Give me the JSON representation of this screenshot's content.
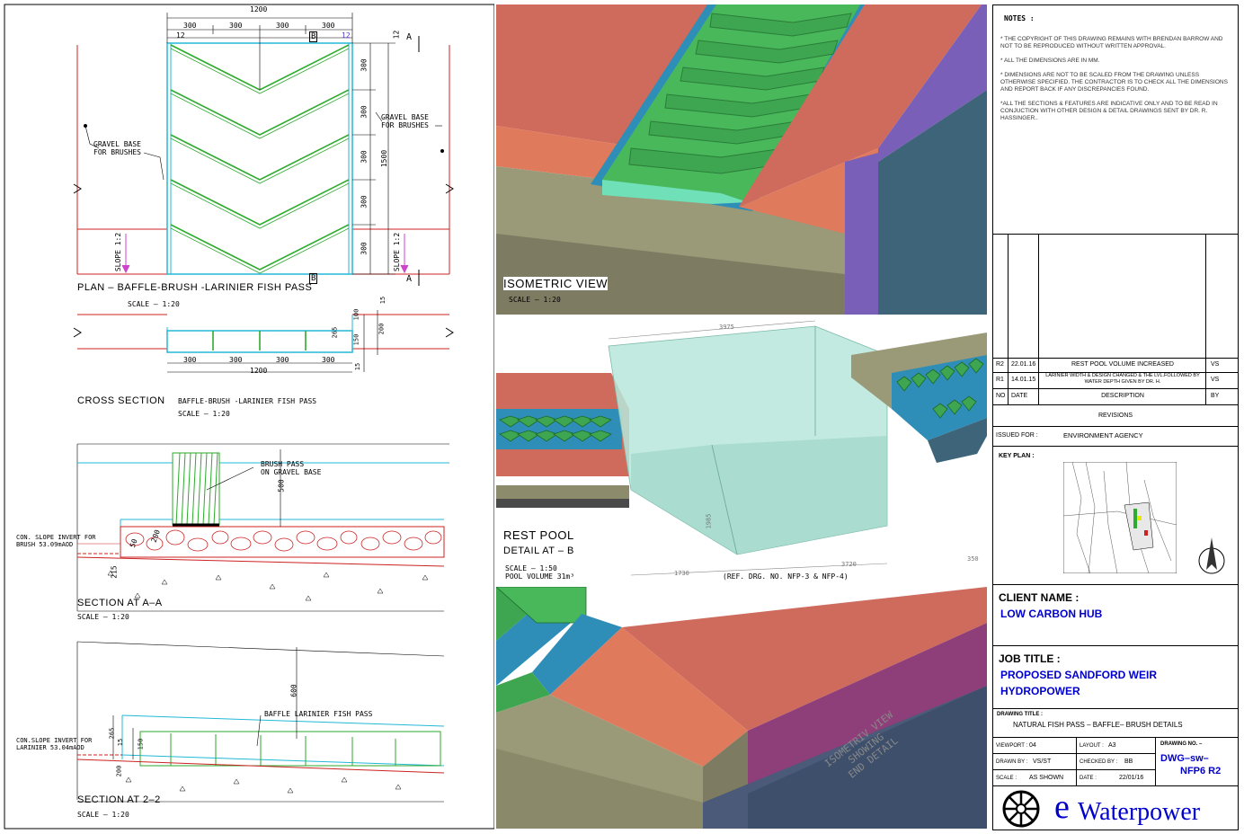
{
  "plan": {
    "title": "PLAN – BAFFLE-BRUSH -LARINIER FISH PASS",
    "scale": "SCALE – 1:20",
    "dims_top": [
      "300",
      "300",
      "300",
      "300"
    ],
    "dim_total": "1200",
    "dim_12_left": "12",
    "dim_12_right": "12",
    "dims_right": [
      "300",
      "300",
      "300",
      "300",
      "300"
    ],
    "dim_right_total": "1500",
    "dim_12_side": "12",
    "gravel_left": "GRAVEL BASE\nFOR BRUSHES",
    "gravel_right": "GRAVEL BASE\nFOR BRUSHES",
    "slope_left": "SLOPE 1:2",
    "slope_right": "SLOPE 1:2",
    "marker_a": "A",
    "marker_b": "B"
  },
  "cross_section": {
    "title": "CROSS SECTION",
    "subtitle": "BAFFLE-BRUSH -LARINIER FISH PASS",
    "scale": "SCALE – 1:20",
    "dims_bottom": [
      "300",
      "300",
      "300",
      "300"
    ],
    "dim_total": "1200",
    "dim_100": "100",
    "dim_265": "265",
    "dim_150": "150",
    "dim_200": "200",
    "dim_15a": "15",
    "dim_15b": "15"
  },
  "section_aa": {
    "title": "SECTION AT A–A",
    "scale": "SCALE – 1:20",
    "brush_label": "BRUSH PASS\nON GRAVEL BASE",
    "invert_label": "CON. SLOPE INVERT FOR\nBRUSH 53.09mAOD",
    "dim_500": "500",
    "dim_200": "200",
    "dim_50": "50",
    "dim_215": "215"
  },
  "section_22": {
    "title": "SECTION AT 2–2",
    "scale": "SCALE – 1:20",
    "baffle_label": "BAFFLE LARINIER FISH PASS",
    "invert_label": "CON.SLOPE INVERT FOR\nLARINIER 53.04mAOD",
    "dim_600": "600",
    "dim_265": "265",
    "dim_150": "150",
    "dim_15": "15",
    "dim_200": "200"
  },
  "iso_view": {
    "title": "ISOMETRIC  VIEW",
    "scale": "SCALE – 1:20"
  },
  "rest_pool": {
    "title": "REST POOL",
    "subtitle": "DETAIL AT – B",
    "scale": "SCALE – 1:50",
    "volume": "POOL VOLUME 31m³",
    "dim_3975": "3975",
    "dim_3720": "3720",
    "dim_1730": "1730",
    "dim_350": "350",
    "dim_1985": "1985",
    "ref": "(REF. DRG. NO. NFP-3 & NFP-4)"
  },
  "end_detail": {
    "label": "ISOMETRIV VIEW\nSHOWING\nEND DETAIL"
  },
  "notes": {
    "title": "NOTES :",
    "items": [
      "* THE COPYRIGHT OF THIS DRAWING REMAINS WITH BRENDAN BARROW AND NOT TO BE REPRODUCED WITHOUT WRITTEN APPROVAL.",
      "* ALL THE DIMENSIONS ARE IN MM.",
      "* DIMENSIONS ARE NOT TO BE SCALED FROM THE DRAWING UNLESS OTHERWISE SPECIFIED. THE CONTRACTOR IS TO CHECK ALL THE DIMENSIONS AND REPORT BACK IF ANY DISCREPANCIES FOUND.",
      "*ALL THE SECTIONS & FEATURES ARE INDICATIVE ONLY AND TO BE READ IN CONJUCTION WITH OTHER DESIGN & DETAIL DRAWINGS SENT BY DR. R. HASSINGER.."
    ]
  },
  "revisions": {
    "rows": [
      {
        "no": "R2",
        "date": "22.01.16",
        "desc": "REST POOL VOLUME INCREASED",
        "by": "VS"
      },
      {
        "no": "R1",
        "date": "14.01.15",
        "desc": "LARINIER WIDTH & DESIGN CHANGED & THE LVL.FOLLOWED BY WATER DEPTH GIVEN BY DR. H.",
        "by": "VS"
      }
    ],
    "header": {
      "no": "NO",
      "date": "DATE",
      "desc": "DESCRIPTION",
      "by": "BY"
    },
    "label": "REVISIONS"
  },
  "issued": {
    "label": "ISSUED FOR :",
    "value": "ENVIRONMENT AGENCY"
  },
  "key_plan": {
    "label": "KEY PLAN :"
  },
  "client": {
    "label": "CLIENT NAME :",
    "value": "LOW CARBON HUB"
  },
  "job": {
    "label": "JOB TITLE :",
    "value_1": "PROPOSED SANDFORD WEIR",
    "value_2": "HYDROPOWER"
  },
  "drawing_title": {
    "label": "DRAWING TITLE :",
    "value": "NATURAL FISH PASS – BAFFLE– BRUSH DETAILS"
  },
  "info": {
    "viewport_label": "VIEWPORT :",
    "viewport": "04",
    "layout_label": "LAYOUT :",
    "layout": "A3",
    "drawn_label": "DRAWN BY :",
    "drawn": "VS/ST",
    "checked_label": "CHECKED BY :",
    "checked": "BB",
    "scale_label": "SCALE :",
    "scale": "AS SHOWN",
    "date_label": "DATE :",
    "date": "22/01/16",
    "drawing_no_label": "DRAWING NO. –",
    "drawing_no_1": "DWG–sw–",
    "drawing_no_2": "NFP6 R2"
  },
  "logo": {
    "e": "e",
    "text": "Waterpower"
  },
  "colors": {
    "cyan": "#22b8d8",
    "green": "#2eaa2e",
    "red": "#cc2222",
    "salmon": "#cf6b5c",
    "olive": "#9a9a78",
    "purple": "#7a5fb8",
    "teal": "#3d6478",
    "water": "#b7e6da",
    "blue_text": "#0000cc"
  }
}
